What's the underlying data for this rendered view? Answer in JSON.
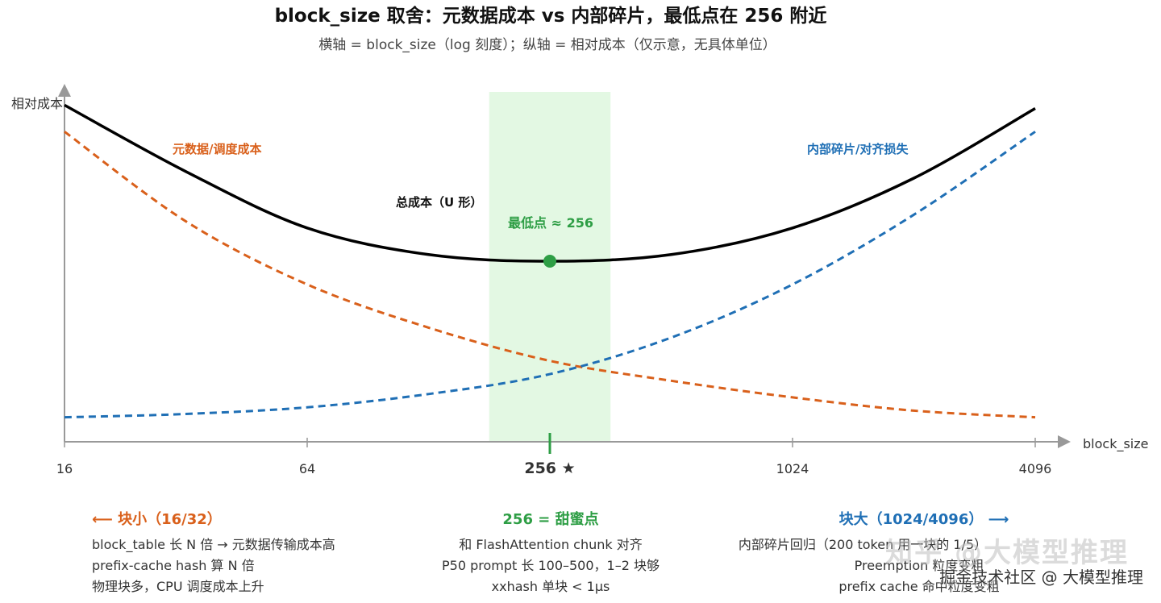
{
  "chart_data": {
    "type": "line",
    "title": "block_size 取舍：元数据成本 vs 内部碎片，最低点在 256 附近",
    "subtitle": "横轴 = block_size（log 刻度）；纵轴 = 相对成本（仅示意，无具体单位）",
    "xlabel": "block_size",
    "ylabel": "相对成本",
    "x_scale": "log2",
    "xlim": [
      16,
      4096
    ],
    "ylim": [
      0,
      1
    ],
    "ticks": [
      {
        "value": 16,
        "label": "16"
      },
      {
        "value": 64,
        "label": "64"
      },
      {
        "value": 256,
        "label": "256 ★"
      },
      {
        "value": 1024,
        "label": "1024"
      },
      {
        "value": 4096,
        "label": "4096"
      }
    ],
    "highlight_band": {
      "x": [
        181,
        362
      ],
      "color": "#e3f8e3"
    },
    "series": [
      {
        "name": "总成本（U 形）",
        "style": "solid",
        "color": "#000000",
        "x": [
          16,
          32,
          64,
          128,
          256,
          512,
          1024,
          2048,
          4096
        ],
        "y": [
          0.97,
          0.77,
          0.6,
          0.52,
          0.5,
          0.52,
          0.6,
          0.75,
          0.96
        ]
      },
      {
        "name": "元数据/调度成本",
        "style": "dashed",
        "color": "#d9601b",
        "x": [
          16,
          32,
          64,
          128,
          256,
          512,
          1024,
          2048,
          4096
        ],
        "y": [
          0.89,
          0.62,
          0.43,
          0.3,
          0.2,
          0.14,
          0.09,
          0.05,
          0.03
        ]
      },
      {
        "name": "内部碎片/对齐损失",
        "style": "dashed",
        "color": "#1f6fb5",
        "x": [
          16,
          32,
          64,
          128,
          256,
          512,
          1024,
          2048,
          4096
        ],
        "y": [
          0.03,
          0.04,
          0.06,
          0.1,
          0.16,
          0.27,
          0.43,
          0.64,
          0.89
        ]
      }
    ],
    "minimum_point": {
      "x": 256,
      "y": 0.5,
      "label": "最低点 ≈ 256",
      "color": "#2e9e45"
    },
    "annotations": [
      {
        "heading": "⟵ 块小（16/32）",
        "color": "#d9601b",
        "lines": [
          "block_table 长 N 倍 → 元数据传输成本高",
          "prefix-cache hash 算 N 倍",
          "物理块多，CPU 调度成本上升"
        ]
      },
      {
        "heading": "256 = 甜蜜点",
        "color": "#2e9e45",
        "lines": [
          "和 FlashAttention chunk 对齐",
          "P50 prompt 长 100–500，1–2 块够",
          "xxhash 单块 < 1μs"
        ]
      },
      {
        "heading": "块大（1024/4096） ⟶",
        "color": "#1f6fb5",
        "lines": [
          "内部碎片回归（200 token 用一块的 1/5）",
          "Preemption 粒度变粗",
          "prefix cache 命中粒度变粗"
        ]
      }
    ]
  },
  "watermarks": {
    "primary": "知乎 @大模型推理",
    "secondary": "掘金技术社区 @ 大模型推理"
  }
}
